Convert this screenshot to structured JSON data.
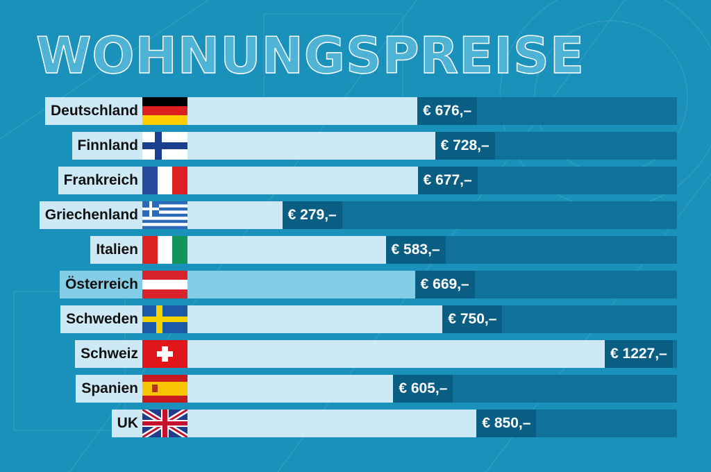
{
  "chart_data": {
    "type": "bar",
    "title": "WOHNUNGSPREISE",
    "orientation": "horizontal",
    "unit": "€",
    "categories": [
      "Deutschland",
      "Finnland",
      "Frankreich",
      "Griechenland",
      "Italien",
      "Österreich",
      "Schweden",
      "Schweiz",
      "Spanien",
      "UK"
    ],
    "values": [
      676,
      728,
      677,
      279,
      583,
      669,
      750,
      1227,
      605,
      850
    ],
    "labels": [
      "€ 676,–",
      "€ 728,–",
      "€ 677,–",
      "€ 279,–",
      "€ 583,–",
      "€ 669,–",
      "€ 750,–",
      "€ 1227,–",
      "€ 605,–",
      "€ 850,–"
    ],
    "flags": [
      "de",
      "fi",
      "fr",
      "gr",
      "it",
      "at",
      "se",
      "ch",
      "es",
      "uk"
    ],
    "highlight": "Österreich",
    "colors": {
      "bar": "#cce9f5",
      "highlight": "#83cde6",
      "value_box": "#0b5e83",
      "track": "#10729a",
      "background": "#1a91bb"
    }
  }
}
